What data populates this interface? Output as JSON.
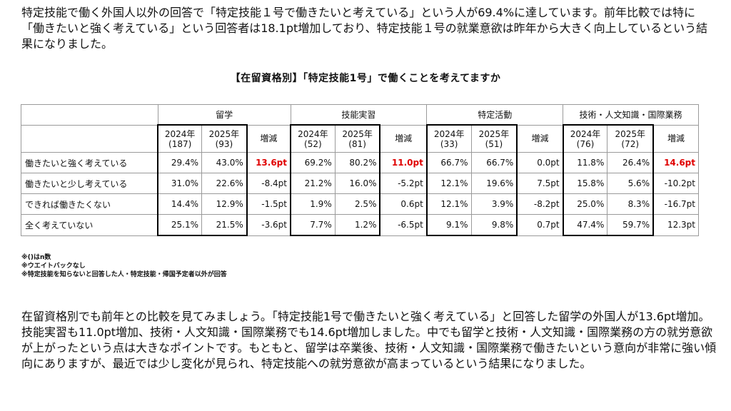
{
  "intro": "特定技能で働く外国人以外の回答で「特定技能１号で働きたいと考えている」という人が69.4%に達しています。前年比較では特に「働きたいと強く考えている」という回答者は18.1pt増加しており、特定技能１号の就業意欲は昨年から大きく向上しているという結果になりました。",
  "table_title": "【在留資格別】「特定技能1号」で働くことを考えてますか",
  "groups": [
    "留学",
    "技能実習",
    "特定活動",
    "技術・人文知識・国際業務"
  ],
  "year_headers": [
    [
      "2024年",
      "(187)",
      "2025年",
      "(93)"
    ],
    [
      "2024年",
      "(52)",
      "2025年",
      "(81)"
    ],
    [
      "2024年",
      "(33)",
      "2025年",
      "(51)"
    ],
    [
      "2024年",
      "(76)",
      "2025年",
      "(72)"
    ]
  ],
  "change_label": "増減",
  "rows": [
    {
      "label": "働きたいと強く考えている",
      "cells": [
        [
          "29.4%",
          "43.0%",
          "13.6pt"
        ],
        [
          "69.2%",
          "80.2%",
          "11.0pt"
        ],
        [
          "66.7%",
          "66.7%",
          "0.0pt"
        ],
        [
          "11.8%",
          "26.4%",
          "14.6pt"
        ]
      ]
    },
    {
      "label": "働きたいと少し考えている",
      "cells": [
        [
          "31.0%",
          "22.6%",
          "-8.4pt"
        ],
        [
          "21.2%",
          "16.0%",
          "-5.2pt"
        ],
        [
          "12.1%",
          "19.6%",
          "7.5pt"
        ],
        [
          "15.8%",
          "5.6%",
          "-10.2pt"
        ]
      ]
    },
    {
      "label": "できれば働きたくない",
      "cells": [
        [
          "14.4%",
          "12.9%",
          "-1.5pt"
        ],
        [
          "1.9%",
          "2.5%",
          "0.6pt"
        ],
        [
          "12.1%",
          "3.9%",
          "-8.2pt"
        ],
        [
          "25.0%",
          "8.3%",
          "-16.7pt"
        ]
      ]
    },
    {
      "label": "全く考えていない",
      "cells": [
        [
          "25.1%",
          "21.5%",
          "-3.6pt"
        ],
        [
          "7.7%",
          "1.2%",
          "-6.5pt"
        ],
        [
          "9.1%",
          "9.8%",
          "0.7pt"
        ],
        [
          "47.4%",
          "59.7%",
          "12.3pt"
        ]
      ]
    }
  ],
  "highlight_color": "#e00000",
  "notes": [
    "※()はn数",
    "※ウエイトバックなし",
    "※特定技能を知らないと回答した人・特定技能・帰国予定者以外が回答"
  ],
  "outro": "在留資格別でも前年との比較を見てみましょう。「特定技能1号で働きたいと強く考えている」と回答した留学の外国人が13.6pt増加。技能実習も11.0pt増加、技術・人文知識・国際業務でも14.6pt増加しました。中でも留学と技術・人文知識・国際業務の方の就労意欲が上がったという点は大きなポイントです。もともと、留学は卒業後、技術・人文知識・国際業務で働きたいという意向が非常に強い傾向にありますが、最近では少し変化が見られ、特定技能への就労意欲が高まっているという結果になりました。"
}
